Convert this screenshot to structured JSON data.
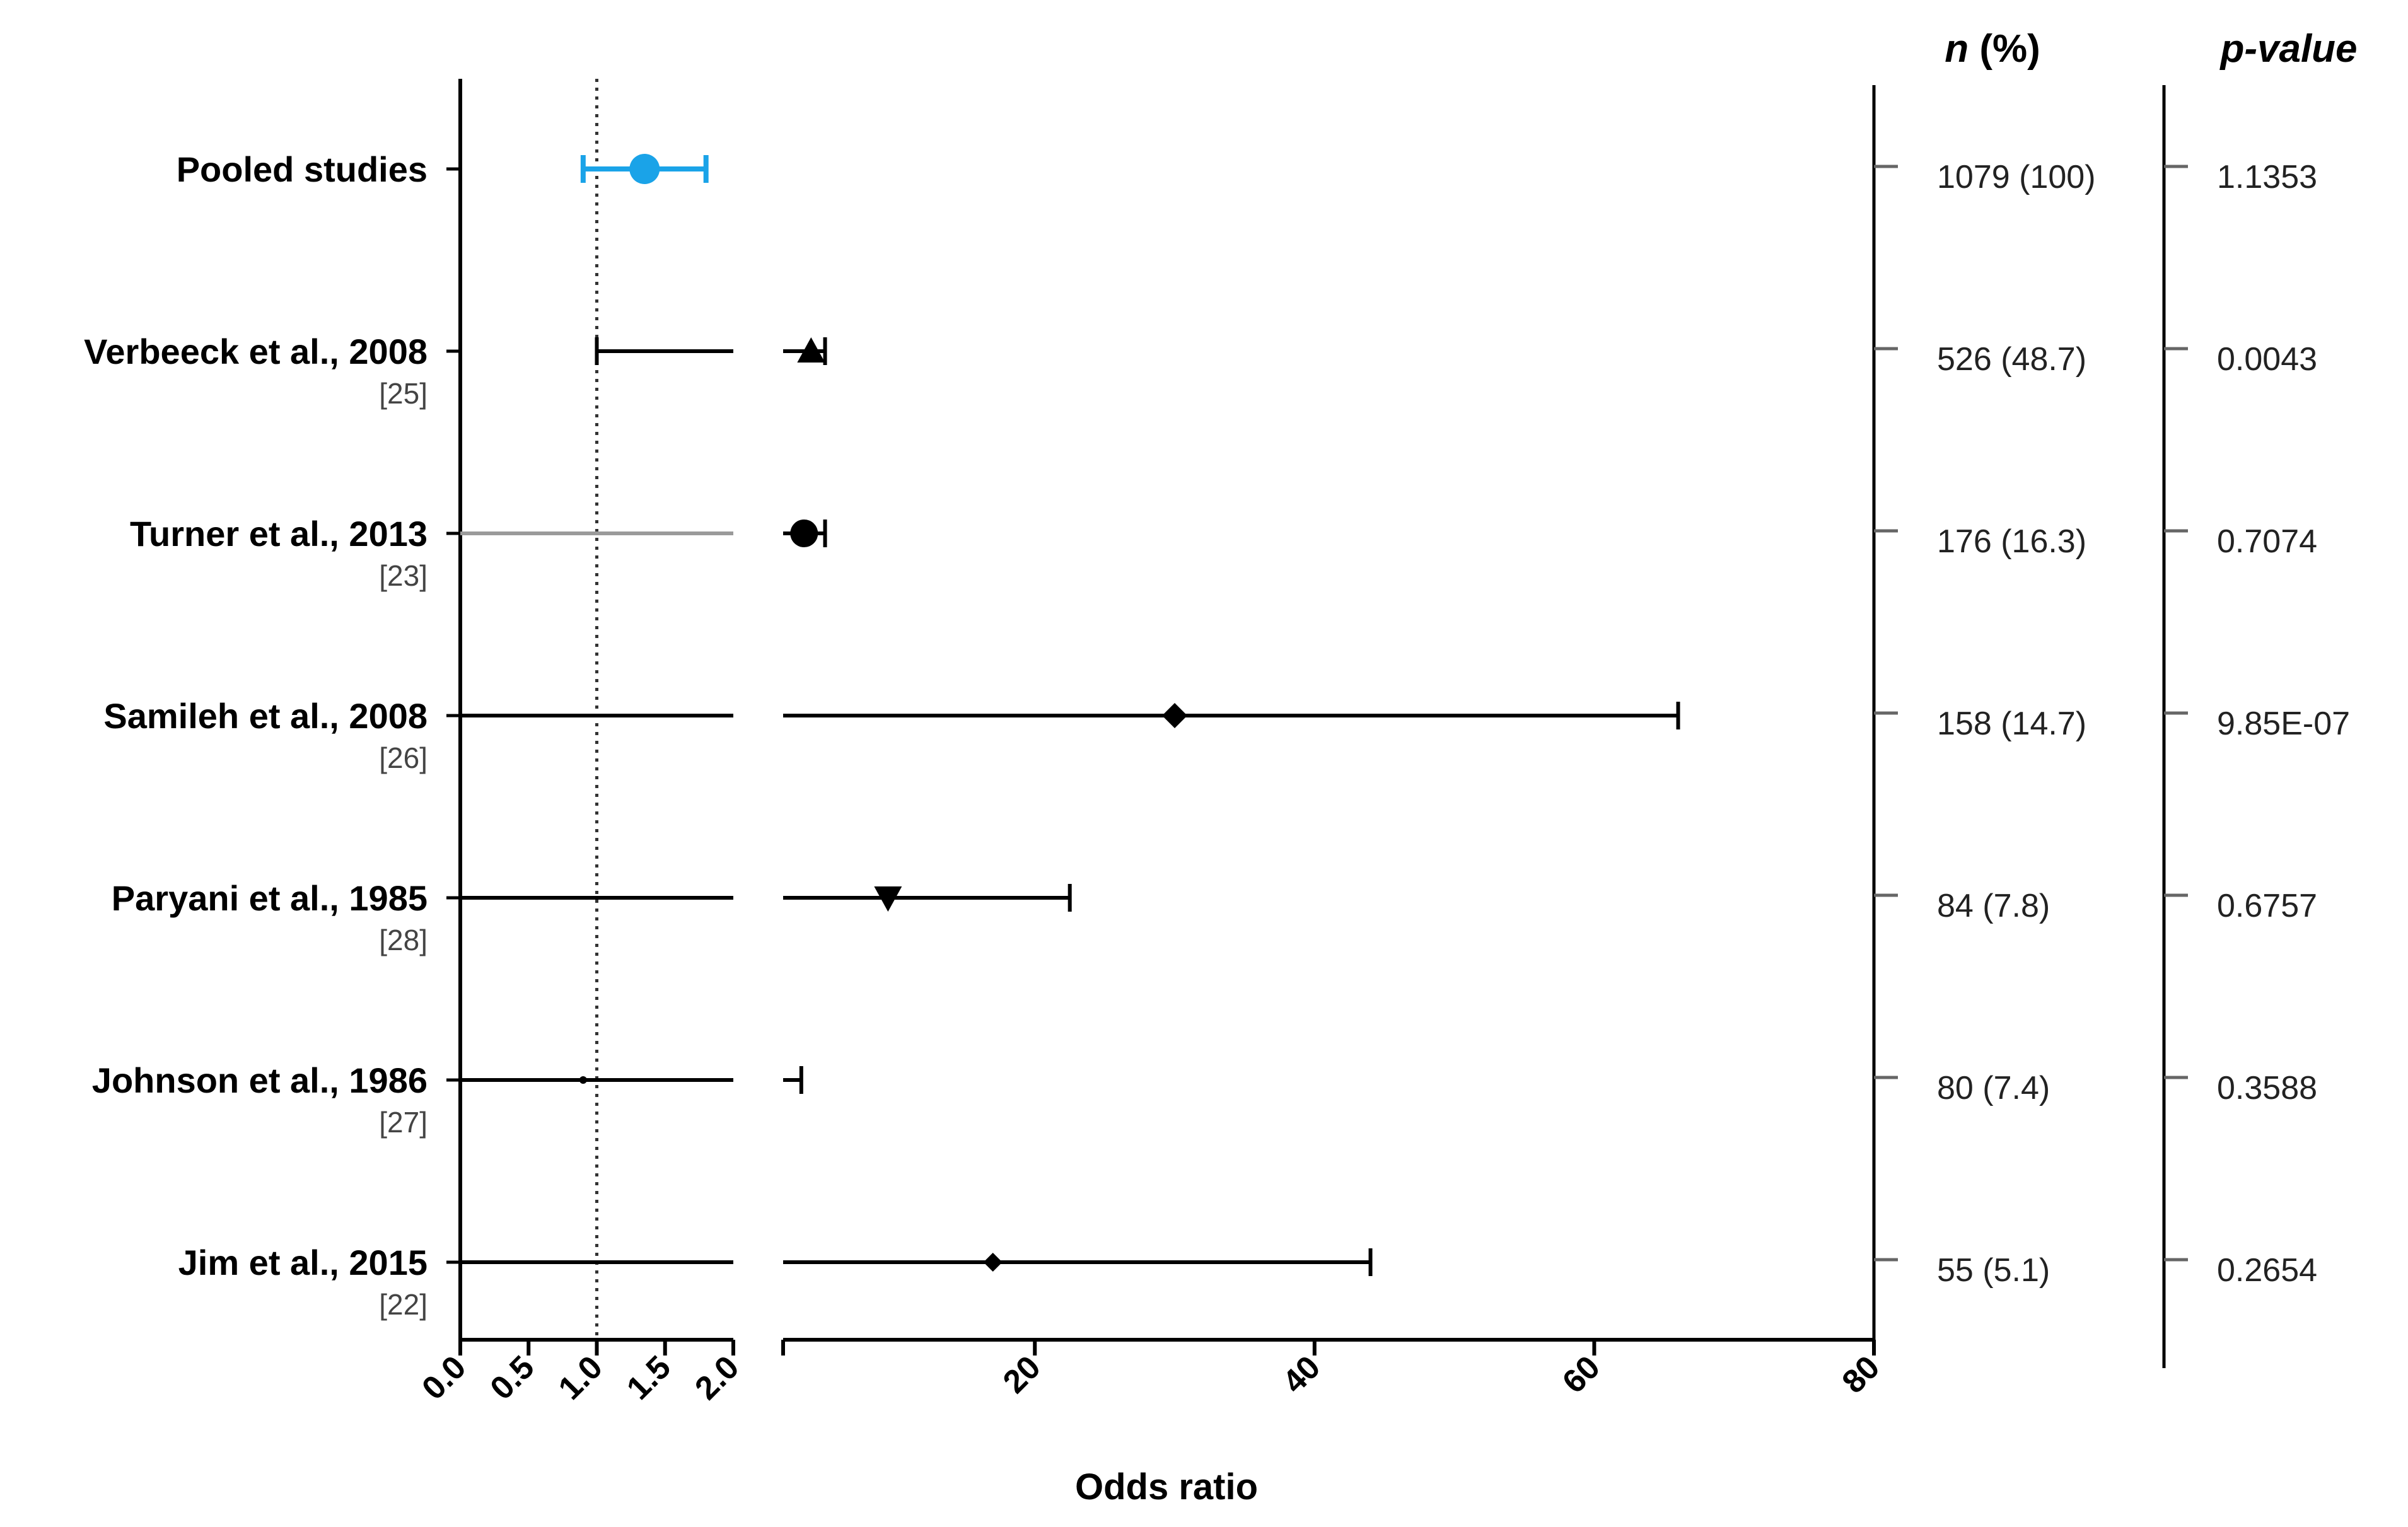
{
  "chart_data": {
    "type": "forest",
    "xlabel": "Odds ratio",
    "x_axis_segments": [
      {
        "range": [
          0,
          2
        ],
        "ticks": [
          "0.0",
          "0.5",
          "1.0",
          "1.5",
          "2.0"
        ],
        "tick_values": [
          0,
          0.5,
          1,
          1.5,
          2
        ]
      },
      {
        "range": [
          2,
          80
        ],
        "ticks": [
          "20",
          "40",
          "60",
          "80"
        ],
        "tick_values": [
          20,
          40,
          60,
          80
        ]
      }
    ],
    "reference_line": 1,
    "column_headers": {
      "n": "n",
      "n_suffix": " (%)",
      "p": "p-value"
    },
    "studies": [
      {
        "label": "Pooled studies",
        "ref": "",
        "or": 1.35,
        "ci_low": 0.9,
        "ci_high": 1.8,
        "marker": "circle",
        "color": "#1aa3e8",
        "n": "1079 (100)",
        "p": "1.1353"
      },
      {
        "label": "Verbeeck et al., 2008",
        "ref": "[25]",
        "or": 4.0,
        "ci_low": 1.0,
        "ci_high": 5.0,
        "marker": "triangle-up",
        "color": "#000000",
        "n": "526 (48.7)",
        "p": "0.0043"
      },
      {
        "label": "Turner et al., 2013",
        "ref": "[23]",
        "or": 3.5,
        "ci_low": 0.0,
        "ci_high": 5.0,
        "marker": "circle",
        "color": "#000000",
        "n": "176 (16.3)",
        "p": "0.7074"
      },
      {
        "label": "Samileh et al., 2008",
        "ref": "[26]",
        "or": 30.0,
        "ci_low": 0.0,
        "ci_high": 66.0,
        "marker": "diamond",
        "color": "#000000",
        "n": "158 (14.7)",
        "p": "9.85E-07"
      },
      {
        "label": "Paryani et al., 1985",
        "ref": "[28]",
        "or": 9.5,
        "ci_low": 0.0,
        "ci_high": 22.5,
        "marker": "triangle-down",
        "color": "#000000",
        "n": "84 (7.8)",
        "p": "0.6757"
      },
      {
        "label": "Johnson et al., 1986",
        "ref": "[27]",
        "or": 0.9,
        "ci_low": 0.0,
        "ci_high": 3.3,
        "marker": "small-dot",
        "color": "#000000",
        "n": "80 (7.4)",
        "p": "0.3588"
      },
      {
        "label": "Jim et al., 2015",
        "ref": "[22]",
        "or": 17.0,
        "ci_low": 0.0,
        "ci_high": 44.0,
        "marker": "diamond-small",
        "color": "#000000",
        "n": "55 (5.1)",
        "p": "0.2654"
      }
    ]
  }
}
